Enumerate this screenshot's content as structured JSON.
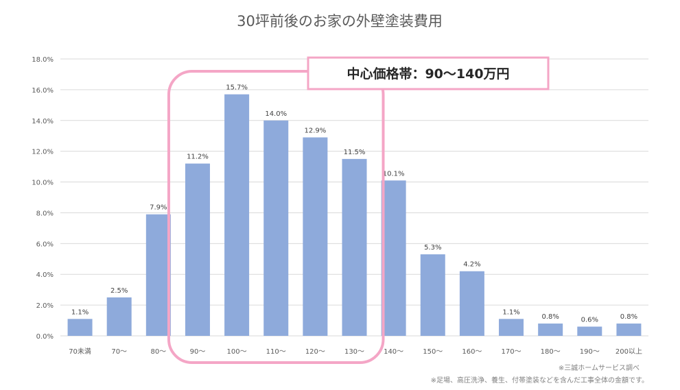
{
  "chart_data": {
    "type": "bar",
    "title": "30坪前後のお家の外壁塗装費用",
    "xlabel": "",
    "ylabel": "",
    "categories": [
      "70未満",
      "70〜",
      "80〜",
      "90〜",
      "100〜",
      "110〜",
      "120〜",
      "130〜",
      "140〜",
      "150〜",
      "160〜",
      "170〜",
      "180〜",
      "190〜",
      "200以上"
    ],
    "values": [
      1.1,
      2.5,
      7.9,
      11.2,
      15.7,
      14.0,
      12.9,
      11.5,
      10.1,
      5.3,
      4.2,
      1.1,
      0.8,
      0.6,
      0.8
    ],
    "value_labels": [
      "1.1%",
      "2.5%",
      "7.9%",
      "11.2%",
      "15.7%",
      "14.0%",
      "12.9%",
      "11.5%",
      "10.1%",
      "5.3%",
      "4.2%",
      "1.1%",
      "0.8%",
      "0.6%",
      "0.8%"
    ],
    "yticks": [
      "0.0%",
      "2.0%",
      "4.0%",
      "6.0%",
      "8.0%",
      "10.0%",
      "12.0%",
      "14.0%",
      "16.0%",
      "18.0%"
    ],
    "ylim": [
      0,
      18
    ],
    "grid": true,
    "bar_color": "#8eaadb",
    "highlight": {
      "label": "中心価格帯：90〜140万円",
      "from_category": "90〜",
      "to_category": "130〜",
      "color": "#f4a6c6"
    },
    "notes": [
      "※三誠ホームサービス調べ",
      "※足場、高圧洗浄、養生、付帯塗装などを含んだ工事全体の金額です。"
    ]
  }
}
